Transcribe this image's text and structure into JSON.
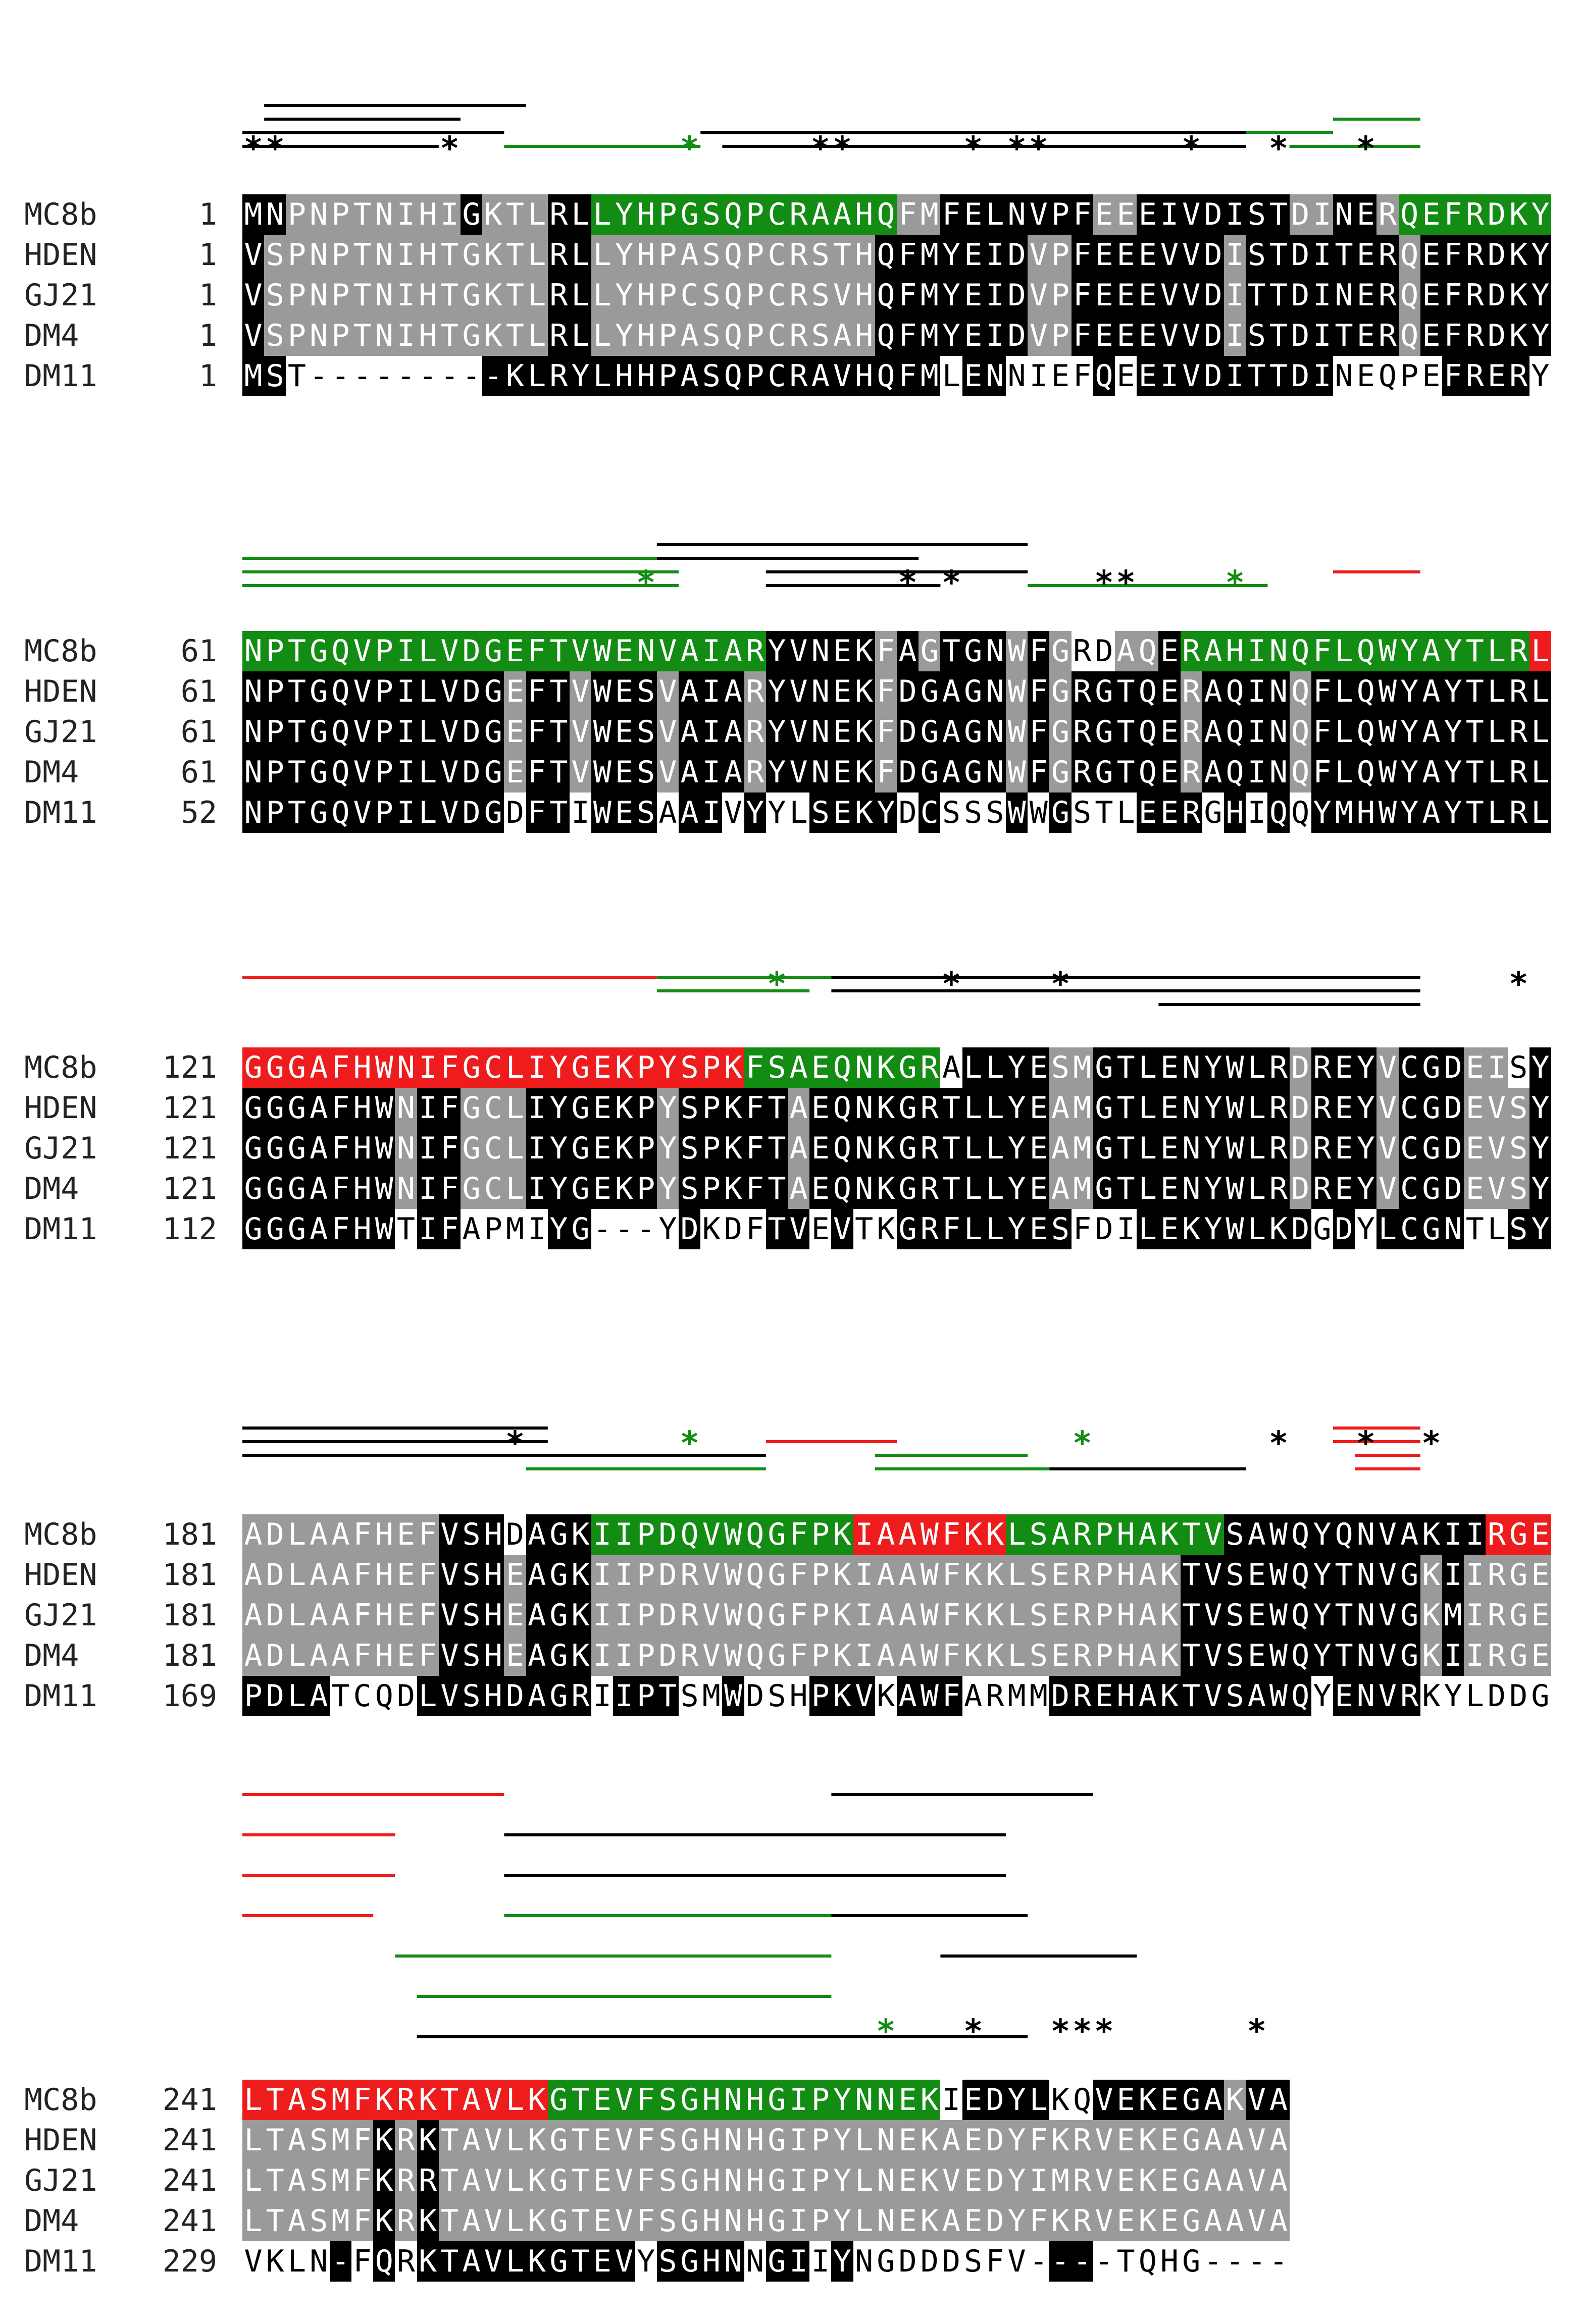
{
  "colors": {
    "identical": "#000000",
    "similar": "#9a9a9a",
    "beta_strand": "#128c12",
    "helix": "#ee1c1c",
    "structure_black": "#000000"
  },
  "alignment": {
    "sequences": [
      "MC8b",
      "HDEN",
      "GJ21",
      "DM4",
      "DM11"
    ],
    "blocks": [
      {
        "starts": [
          "1",
          "1",
          "1",
          "1",
          "1"
        ],
        "rows": [
          "MNPNPTNIHIGKTLRLLYHPGSQPCRAAHQFMFELNVPFEEEIVDISTDINERQEFRDKY",
          "VSPNPTNIHTGKTLRLLYHPASQPCRSTHQFMYEIDVPFEEEVVDISTDITERQEFRDKY",
          "VSPNPTNIHTGKTLRLLYHPCSQPCRSVHQFMYEIDVPFEEEVVDITTDINERQEFRDKY",
          "VSPNPTNIHTGKTLRLLYHPASQPCRSAHQFMYEIDVPFEEEVVDISTDITERQEFRDKY",
          "MST---------KLRYLHHPASQPCRAVHQFMLENNIEFQEEIVDITTDINEQPEFRERY"
        ],
        "shade": [
          "bbggggggggbgggbbGGGGGGGGGGGGGGggbbbbbbbggbbbbbbbggbbgGGGGGGG",
          "bgggggggggggggbbgggggggggggggbbbbbbbggbbbbbbbgbbbbbbbgbbbbbbb",
          "bgggggggggggggbbgggggggggggggbbbbbbbggbbbbbbbgbbbbbbbgbbbbbbb",
          "bgggggggggggggbbgggggggggggggbbbbbbbggbbbbbbbgbbbbbbbgbbbbbbb",
          "bb.........bbbbbbbbbbbbbbbbbbbbb.bb....b.bbbbbbbbb.....bbbb"
        ],
        "stars": [
          {
            "col": 0,
            "color": "black"
          },
          {
            "col": 1,
            "color": "black"
          },
          {
            "col": 9,
            "color": "black"
          },
          {
            "col": 20,
            "color": "green"
          },
          {
            "col": 26,
            "color": "black"
          },
          {
            "col": 27,
            "color": "black"
          },
          {
            "col": 33,
            "color": "black"
          },
          {
            "col": 35,
            "color": "black"
          },
          {
            "col": 36,
            "color": "black"
          },
          {
            "col": 43,
            "color": "black"
          },
          {
            "col": 47,
            "color": "black"
          },
          {
            "col": 51,
            "color": "black"
          }
        ]
      },
      {
        "starts": [
          "61",
          "61",
          "61",
          "61",
          "52"
        ],
        "rows": [
          "NPTGQVPILVDGEFTVWENVAIARYVNEKFAGTGNWFGRDAQERAHINQFLQWYAYTLRL",
          "NPTGQVPILVDGEFTVWESVAIARYVNEKFDGAGNWFGRGTQERAQINQFLQWYAYTLRL",
          "NPTGQVPILVDGEFTVWESVAIARYVNEKFDGAGNWFGRGTQERAQINQFLQWYAYTLRL",
          "NPTGQVPILVDGEFTVWESVAIARYVNEKFDGAGNWFGRGTQERAQINQFLQWYAYTLRL",
          "NPTGQVPILVDGDFTIWESAAIVYYLSEKYDCSSSWWGSTLEERGHIQQYMHWYAYTLRL"
        ],
        "shade": [
          "GGGGGGGGGGGGGGGGGGGGGGGGbbbbbgbgbbbgbg..ggbGGGGGGGGGGGGGGGGr",
          "bbbbbbbbbbbbgbbgbbbgbbbgbbbbbgbbbbbgbgbbbbbgbbbbgbbbbbbbbbbb",
          "bbbbbbbbbbbbgbbgbbbgbbbgbbbbbgbbbbbgbgbbbbbgbbbbgbbbbbbbbbbb",
          "bbbbbbbbbbbbgbbgbbbgbbbgbbbbbgbbbbbgbgbbbbbgbbbbgbbbbbbbbbbb",
          "bbbbbbbbbbbb.bb.bbb.bb.b..bbbb.b...b.b...bbb.b.b.bbbbbbbbbbb"
        ],
        "stars": [
          {
            "col": 18,
            "color": "green"
          },
          {
            "col": 30,
            "color": "black"
          },
          {
            "col": 32,
            "color": "black"
          },
          {
            "col": 39,
            "color": "black"
          },
          {
            "col": 40,
            "color": "black"
          },
          {
            "col": 45,
            "color": "green"
          }
        ]
      },
      {
        "starts": [
          "121",
          "121",
          "121",
          "121",
          "112"
        ],
        "rows": [
          "GGGAFHWNIFGCLIYGEKPYSPKFSAEQNKGRALLYESMGTLENYWLRDREYVCGDEISY",
          "GGGAFHWNIFGCLIYGEKPYSPKFTAEQNKGRTLLYEAMGTLENYWLRDREYVCGDEVSY",
          "GGGAFHWNIFGCLIYGEKPYSPKFTAEQNKGRTLLYEAMGTLENYWLRDREYVCGDEVSY",
          "GGGAFHWNIFGCLIYGEKPYSPKFTAEQNKGRTLLYEAMGTLENYWLRDREYVCGDEVSY",
          "GGGAFHWTIFAPMIYG---YDKDFTVEVTKGRFLLYESFDILEKYWLKDGDYLCGNTLSY"
        ],
        "shade": [
          "rrrrrrrrrrrrrrrrrrrrrrrGGGGGGGGG.bbbbggbbbbbbbbbgbbbgbbbgg.bb",
          "bbbbbbbgbbgggbbbbbbgbbbbbgbbbbbbbbbbbggbbbbbbbbbgbbbgbbbgggbb",
          "bbbbbbbgbbgggbbbbbbgbbbbbgbbbbbbbbbbbggbbbbbbbbbgbbbgbbbgggbb",
          "bbbbbbbgbbgggbbbbbbgbbbbbgbbbbbbbbbbbggbbbbbbbbbgbbbgbbbgggbb",
          "bbbbbbb.bb....bb....b...bb.b..bbbbbbbb...bbbbbbbb.b.bbbb..bb"
        ],
        "stars": [
          {
            "col": 24,
            "color": "green"
          },
          {
            "col": 32,
            "color": "black"
          },
          {
            "col": 37,
            "color": "black"
          },
          {
            "col": 58,
            "color": "black"
          }
        ]
      },
      {
        "starts": [
          "181",
          "181",
          "181",
          "181",
          "169"
        ],
        "rows": [
          "ADLAAFHEFVSHDAGKIIPDQVWQGFPKIAAWFKKLSARPHAKTVSAWQYQNVAKIIRGE",
          "ADLAAFHEFVSHEAGKIIPDRVWQGFPKIAAWFKKLSERPHAKTVSEWQYTNVGKIIRGE",
          "ADLAAFHEFVSHEAGKIIPDRVWQGFPKIAAWFKKLSERPHAKTVSEWQYTNVGKMIRGE",
          "ADLAAFHEFVSHEAGKIIPDRVWQGFPKIAAWFKKLSERPHAKTVSEWQYTNVGKIIRGE",
          "PDLATCQDLVSHDAGRIIPTSMWDSHPKVKAWFARMMDREHAKTVSAWQYENVRKYLDDG"
        ],
        "shade": [
          "gggggggggbbb.bbbGGGGGGGGGGGGrrrrrrrGGGGGGGGGGbbbbbbbbbbbbrrrrr",
          "gggggggggbbbgbbbgggggggggggggggggggggggggggbbbbbbbbbbbgbggggg",
          "gggggggggbbbgbbbgggggggggggggggggggggggggggbbbbbbbbbbbgbggggg",
          "gggggggggbbbgbbbgggggggggggggggggggggggggggbbbbbbbbbbbgbggggg",
          "bbbb....bbbbbbbb.bbb..b...bbb.bbb....bbbbbbbbbbbb.bbbb....."
        ],
        "stars": [
          {
            "col": 12,
            "color": "black"
          },
          {
            "col": 20,
            "color": "green"
          },
          {
            "col": 38,
            "color": "green"
          },
          {
            "col": 47,
            "color": "black"
          },
          {
            "col": 51,
            "color": "black"
          },
          {
            "col": 54,
            "color": "black"
          }
        ]
      },
      {
        "starts": [
          "241",
          "241",
          "241",
          "241",
          "229"
        ],
        "rows": [
          "LTASMFKRKTAVLKGTEVFSGHNHGIPYNNEKIEDYLKQVEKEGAKVA",
          "LTASMFKRKTAVLKGTEVFSGHNHGIPYLNEKAEDYFKRVEKEGAAVA",
          "LTASMFKRRTAVLKGTEVFSGHNHGIPYLNEKVEDYIMRVEKEGAAVA",
          "LTASMFKRKTAVLKGTEVFSGHNHGIPYLNEKAEDYFKRVEKEGAAVA",
          "VKLN-FQRKTAVLKGTEVYSGHNNGIIYNGDDDSFV----TQHG----"
        ],
        "shade": [
          "rrrrrrrrrrrrrrGGGGGGGGGGGGGGGGGG.bbbb..bbbbbbgbb",
          "ggggggbgbgggggggggggggggggggggggggggggggggggggggg",
          "ggggggbgbgggggggggggggggggggggggggggggggggggggggg",
          "ggggggbgbgggggggggggggggggggggggggggggggggggggggg",
          "....b.b.bbbbbbbbbb.bbbb.bb.b.........bb........"
        ],
        "stars": [
          {
            "col": 29,
            "color": "green"
          },
          {
            "col": 33,
            "color": "black"
          },
          {
            "col": 37,
            "color": "black"
          },
          {
            "col": 38,
            "color": "black"
          },
          {
            "col": 39,
            "color": "black"
          },
          {
            "col": 46,
            "color": "black"
          }
        ]
      }
    ],
    "structure_lines": [
      [
        {
          "row": 0,
          "from": 1,
          "to": 13,
          "color": "black"
        },
        {
          "row": 1,
          "from": 1,
          "to": 10,
          "color": "black"
        },
        {
          "row": 1,
          "from": 50,
          "to": 54,
          "color": "green"
        },
        {
          "row": 2,
          "from": 0,
          "to": 12,
          "color": "black"
        },
        {
          "row": 2,
          "from": 21,
          "to": 46,
          "color": "black"
        },
        {
          "row": 2,
          "from": 46,
          "to": 50,
          "color": "green"
        },
        {
          "row": 3,
          "from": 0,
          "to": 9,
          "color": "black"
        },
        {
          "row": 3,
          "from": 12,
          "to": 21,
          "color": "green"
        },
        {
          "row": 3,
          "from": 22,
          "to": 46,
          "color": "black"
        },
        {
          "row": 3,
          "from": 48,
          "to": 54,
          "color": "green"
        }
      ],
      [
        {
          "row": 0,
          "from": 19,
          "to": 36,
          "color": "black"
        },
        {
          "row": 1,
          "from": 0,
          "to": 19,
          "color": "green"
        },
        {
          "row": 1,
          "from": 19,
          "to": 31,
          "color": "black"
        },
        {
          "row": 2,
          "from": 0,
          "to": 20,
          "color": "green"
        },
        {
          "row": 2,
          "from": 24,
          "to": 36,
          "color": "black"
        },
        {
          "row": 2,
          "from": 50,
          "to": 54,
          "color": "red"
        },
        {
          "row": 3,
          "from": 0,
          "to": 20,
          "color": "green"
        },
        {
          "row": 3,
          "from": 24,
          "to": 32,
          "color": "black"
        },
        {
          "row": 3,
          "from": 36,
          "to": 47,
          "color": "green"
        }
      ],
      [
        {
          "row": 0,
          "from": 0,
          "to": 19,
          "color": "red"
        },
        {
          "row": 0,
          "from": 19,
          "to": 27,
          "color": "green"
        },
        {
          "row": 0,
          "from": 27,
          "to": 54,
          "color": "black"
        },
        {
          "row": 1,
          "from": 19,
          "to": 26,
          "color": "green"
        },
        {
          "row": 1,
          "from": 27,
          "to": 54,
          "color": "black"
        },
        {
          "row": 2,
          "from": 42,
          "to": 54,
          "color": "black"
        }
      ],
      [
        {
          "row": 0,
          "from": 0,
          "to": 14,
          "color": "black"
        },
        {
          "row": 0,
          "from": 50,
          "to": 54,
          "color": "red"
        },
        {
          "row": 1,
          "from": 0,
          "to": 14,
          "color": "black"
        },
        {
          "row": 1,
          "from": 24,
          "to": 30,
          "color": "red"
        },
        {
          "row": 1,
          "from": 50,
          "to": 54,
          "color": "red"
        },
        {
          "row": 2,
          "from": 0,
          "to": 24,
          "color": "black"
        },
        {
          "row": 2,
          "from": 29,
          "to": 36,
          "color": "green"
        },
        {
          "row": 2,
          "from": 51,
          "to": 54,
          "color": "red"
        },
        {
          "row": 3,
          "from": 13,
          "to": 24,
          "color": "green"
        },
        {
          "row": 3,
          "from": 29,
          "to": 37,
          "color": "green"
        },
        {
          "row": 3,
          "from": 37,
          "to": 46,
          "color": "black"
        },
        {
          "row": 3,
          "from": 51,
          "to": 54,
          "color": "red"
        }
      ],
      [
        {
          "row": 0,
          "from": 0,
          "to": 12,
          "color": "red"
        },
        {
          "row": 0,
          "from": 27,
          "to": 39,
          "color": "black"
        },
        {
          "row": 1,
          "from": 0,
          "to": 7,
          "color": "red"
        },
        {
          "row": 1,
          "from": 12,
          "to": 35,
          "color": "black"
        },
        {
          "row": 2,
          "from": 0,
          "to": 7,
          "color": "red"
        },
        {
          "row": 2,
          "from": 12,
          "to": 35,
          "color": "black"
        },
        {
          "row": 3,
          "from": 0,
          "to": 6,
          "color": "red"
        },
        {
          "row": 3,
          "from": 12,
          "to": 27,
          "color": "green"
        },
        {
          "row": 3,
          "from": 27,
          "to": 36,
          "color": "black"
        },
        {
          "row": 4,
          "from": 7,
          "to": 27,
          "color": "green"
        },
        {
          "row": 4,
          "from": 32,
          "to": 41,
          "color": "black"
        },
        {
          "row": 5,
          "from": 8,
          "to": 27,
          "color": "green"
        },
        {
          "row": 6,
          "from": 8,
          "to": 36,
          "color": "black"
        }
      ]
    ]
  }
}
